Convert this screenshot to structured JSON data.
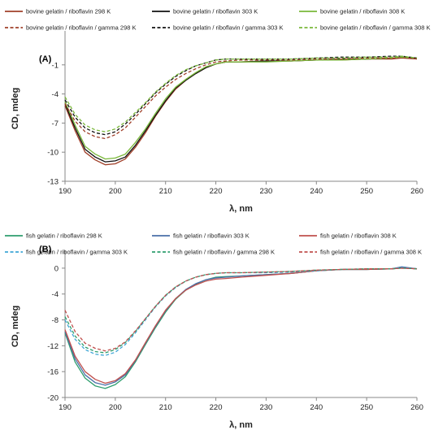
{
  "chart_data": [
    {
      "type": "line",
      "panel_label": "(A)",
      "xlabel": "λ, nm",
      "ylabel": "CD, mdeg",
      "xlim": [
        190,
        260
      ],
      "ylim": [
        -13,
        2
      ],
      "xticks": [
        190,
        200,
        210,
        220,
        230,
        240,
        250,
        260
      ],
      "yticks": [
        -13,
        -10,
        -7,
        -4,
        -1
      ],
      "legend_position": "top",
      "series": [
        {
          "name": "bovine gelatin / riboflavin 298 K",
          "color": "#a0402a",
          "dash": false,
          "x": [
            190,
            192,
            194,
            196,
            198,
            200,
            202,
            204,
            206,
            208,
            210,
            212,
            214,
            216,
            218,
            220,
            222,
            225,
            230,
            235,
            240,
            245,
            250,
            255,
            257,
            260
          ],
          "y": [
            -5.2,
            -7.8,
            -10.0,
            -10.8,
            -11.3,
            -11.2,
            -10.7,
            -9.5,
            -8.0,
            -6.3,
            -4.8,
            -3.5,
            -2.6,
            -1.9,
            -1.3,
            -0.9,
            -0.7,
            -0.7,
            -0.6,
            -0.6,
            -0.5,
            -0.5,
            -0.4,
            -0.4,
            -0.3,
            -0.4
          ]
        },
        {
          "name": "bovine gelatin / riboflavin 303 K",
          "color": "#111111",
          "dash": false,
          "x": [
            190,
            192,
            194,
            196,
            198,
            200,
            202,
            204,
            206,
            208,
            210,
            212,
            214,
            216,
            218,
            220,
            222,
            225,
            230,
            235,
            240,
            245,
            250,
            255,
            257,
            260
          ],
          "y": [
            -5.0,
            -7.5,
            -9.7,
            -10.5,
            -11.0,
            -10.9,
            -10.5,
            -9.3,
            -7.8,
            -6.2,
            -4.7,
            -3.4,
            -2.6,
            -1.9,
            -1.3,
            -0.9,
            -0.7,
            -0.7,
            -0.6,
            -0.6,
            -0.5,
            -0.4,
            -0.4,
            -0.3,
            -0.2,
            -0.3
          ]
        },
        {
          "name": "bovine gelatin / riboflavin 308 K",
          "color": "#7ab83a",
          "dash": false,
          "x": [
            190,
            192,
            194,
            196,
            198,
            200,
            202,
            204,
            206,
            208,
            210,
            212,
            214,
            216,
            218,
            220,
            222,
            225,
            230,
            235,
            240,
            245,
            250,
            255,
            257,
            260
          ],
          "y": [
            -4.8,
            -7.2,
            -9.4,
            -10.2,
            -10.7,
            -10.6,
            -10.2,
            -9.0,
            -7.6,
            -6.0,
            -4.5,
            -3.3,
            -2.5,
            -1.8,
            -1.2,
            -0.9,
            -0.7,
            -0.7,
            -0.7,
            -0.6,
            -0.5,
            -0.5,
            -0.4,
            -0.3,
            -0.2,
            -0.3
          ]
        },
        {
          "name": "bovine gelatin / riboflavin / gamma 298 K",
          "color": "#a0402a",
          "dash": true,
          "x": [
            190,
            192,
            194,
            196,
            198,
            200,
            202,
            204,
            206,
            208,
            210,
            212,
            214,
            216,
            218,
            220,
            222,
            225,
            230,
            235,
            240,
            245,
            250,
            255,
            257,
            260
          ],
          "y": [
            -5.0,
            -6.8,
            -7.9,
            -8.4,
            -8.6,
            -8.2,
            -7.5,
            -6.4,
            -5.3,
            -4.2,
            -3.3,
            -2.5,
            -1.9,
            -1.4,
            -1.0,
            -0.7,
            -0.6,
            -0.5,
            -0.5,
            -0.5,
            -0.4,
            -0.4,
            -0.3,
            -0.3,
            -0.3,
            -0.3
          ]
        },
        {
          "name": "bovine gelatin / riboflavin / gamma 303 K",
          "color": "#111111",
          "dash": true,
          "x": [
            190,
            192,
            194,
            196,
            198,
            200,
            202,
            204,
            206,
            208,
            210,
            212,
            214,
            216,
            218,
            220,
            222,
            225,
            230,
            235,
            240,
            245,
            250,
            255,
            257,
            260
          ],
          "y": [
            -4.6,
            -6.4,
            -7.5,
            -8.0,
            -8.2,
            -7.9,
            -7.1,
            -6.1,
            -5.0,
            -3.9,
            -3.0,
            -2.2,
            -1.6,
            -1.1,
            -0.8,
            -0.5,
            -0.4,
            -0.4,
            -0.4,
            -0.4,
            -0.3,
            -0.2,
            -0.2,
            -0.1,
            -0.1,
            -0.3
          ]
        },
        {
          "name": "bovine gelatin / riboflavin / gamma 308 K",
          "color": "#7ab83a",
          "dash": true,
          "x": [
            190,
            192,
            194,
            196,
            198,
            200,
            202,
            204,
            206,
            208,
            210,
            212,
            214,
            216,
            218,
            220,
            222,
            225,
            230,
            235,
            240,
            245,
            250,
            255,
            257,
            260
          ],
          "y": [
            -4.3,
            -6.1,
            -7.2,
            -7.7,
            -7.9,
            -7.6,
            -6.9,
            -5.9,
            -4.9,
            -3.8,
            -2.9,
            -2.1,
            -1.5,
            -1.1,
            -0.8,
            -0.5,
            -0.4,
            -0.4,
            -0.4,
            -0.4,
            -0.3,
            -0.3,
            -0.2,
            -0.2,
            -0.1,
            -0.3
          ]
        }
      ]
    },
    {
      "type": "line",
      "panel_label": "(B)",
      "xlabel": "λ, nm",
      "ylabel": "CD, mdeg",
      "xlim": [
        190,
        260
      ],
      "ylim": [
        -20,
        2
      ],
      "xticks": [
        190,
        200,
        210,
        220,
        230,
        240,
        250,
        260
      ],
      "yticks": [
        -20,
        -16,
        -12,
        -8,
        -4,
        0
      ],
      "legend_position": "top",
      "series": [
        {
          "name": "fish gelatin / riboflavin 298 K",
          "color": "#2e9e6e",
          "dash": false,
          "x": [
            190,
            192,
            194,
            196,
            198,
            200,
            202,
            204,
            206,
            208,
            210,
            212,
            214,
            216,
            218,
            220,
            222,
            225,
            230,
            235,
            240,
            245,
            250,
            255,
            257,
            260
          ],
          "y": [
            -10.0,
            -14.5,
            -17.0,
            -18.2,
            -18.6,
            -18.0,
            -16.8,
            -14.5,
            -11.8,
            -9.2,
            -6.8,
            -4.8,
            -3.4,
            -2.5,
            -1.8,
            -1.4,
            -1.3,
            -1.2,
            -1.0,
            -0.8,
            -0.4,
            -0.2,
            -0.2,
            -0.1,
            0.1,
            -0.1
          ]
        },
        {
          "name": "fish gelatin / riboflavin 303 K",
          "color": "#4a6fa8",
          "dash": false,
          "x": [
            190,
            192,
            194,
            196,
            198,
            200,
            202,
            204,
            206,
            208,
            210,
            212,
            214,
            216,
            218,
            220,
            222,
            225,
            230,
            235,
            240,
            245,
            250,
            255,
            257,
            260
          ],
          "y": [
            -9.8,
            -14.0,
            -16.5,
            -17.7,
            -18.1,
            -17.6,
            -16.5,
            -14.3,
            -11.6,
            -9.0,
            -6.6,
            -4.7,
            -3.3,
            -2.4,
            -1.8,
            -1.5,
            -1.4,
            -1.2,
            -1.0,
            -0.8,
            -0.4,
            -0.2,
            -0.2,
            -0.1,
            0.2,
            -0.1
          ]
        },
        {
          "name": "fish gelatin / riboflavin 308 K",
          "color": "#c0504d",
          "dash": false,
          "x": [
            190,
            192,
            194,
            196,
            198,
            200,
            202,
            204,
            206,
            208,
            210,
            212,
            214,
            216,
            218,
            220,
            222,
            225,
            230,
            235,
            240,
            245,
            250,
            255,
            257,
            260
          ],
          "y": [
            -9.5,
            -13.6,
            -16.0,
            -17.2,
            -17.8,
            -17.4,
            -16.3,
            -14.2,
            -11.5,
            -8.9,
            -6.5,
            -4.7,
            -3.4,
            -2.6,
            -2.0,
            -1.7,
            -1.6,
            -1.4,
            -1.1,
            -0.8,
            -0.4,
            -0.2,
            -0.2,
            -0.1,
            0.0,
            -0.1
          ]
        },
        {
          "name": "fish gelatin / riboflavin / gamma 303 K",
          "color": "#3fa6d6",
          "dash": true,
          "x": [
            190,
            192,
            194,
            196,
            198,
            200,
            202,
            204,
            206,
            208,
            210,
            212,
            214,
            216,
            218,
            220,
            222,
            225,
            230,
            235,
            240,
            245,
            250,
            255,
            257,
            260
          ],
          "y": [
            -8.0,
            -11.0,
            -12.6,
            -13.3,
            -13.5,
            -13.0,
            -11.8,
            -10.0,
            -8.0,
            -6.0,
            -4.3,
            -3.0,
            -2.0,
            -1.4,
            -1.0,
            -0.8,
            -0.7,
            -0.7,
            -0.7,
            -0.6,
            -0.4,
            -0.2,
            -0.1,
            -0.1,
            0.1,
            -0.1
          ]
        },
        {
          "name": "fish gelatin / riboflavin / gamma 298 K",
          "color": "#2e9e6e",
          "dash": true,
          "x": [
            190,
            192,
            194,
            196,
            198,
            200,
            202,
            204,
            206,
            208,
            210,
            212,
            214,
            216,
            218,
            220,
            222,
            225,
            230,
            235,
            240,
            245,
            250,
            255,
            257,
            260
          ],
          "y": [
            -7.5,
            -10.5,
            -12.2,
            -12.9,
            -13.1,
            -12.6,
            -11.5,
            -9.8,
            -7.8,
            -5.9,
            -4.2,
            -2.9,
            -2.0,
            -1.4,
            -1.0,
            -0.8,
            -0.7,
            -0.7,
            -0.6,
            -0.5,
            -0.3,
            -0.2,
            -0.1,
            -0.1,
            0.0,
            -0.1
          ]
        },
        {
          "name": "fish gelatin / riboflavin / gamma 308 K",
          "color": "#c0504d",
          "dash": true,
          "x": [
            190,
            192,
            194,
            196,
            198,
            200,
            202,
            204,
            206,
            208,
            210,
            212,
            214,
            216,
            218,
            220,
            222,
            225,
            230,
            235,
            240,
            245,
            250,
            255,
            257,
            260
          ],
          "y": [
            -6.5,
            -9.8,
            -11.6,
            -12.4,
            -12.8,
            -12.4,
            -11.4,
            -9.7,
            -7.8,
            -5.9,
            -4.2,
            -2.9,
            -2.0,
            -1.4,
            -1.0,
            -0.8,
            -0.7,
            -0.7,
            -0.6,
            -0.5,
            -0.3,
            -0.2,
            -0.1,
            -0.1,
            0.0,
            -0.1
          ]
        }
      ]
    }
  ]
}
